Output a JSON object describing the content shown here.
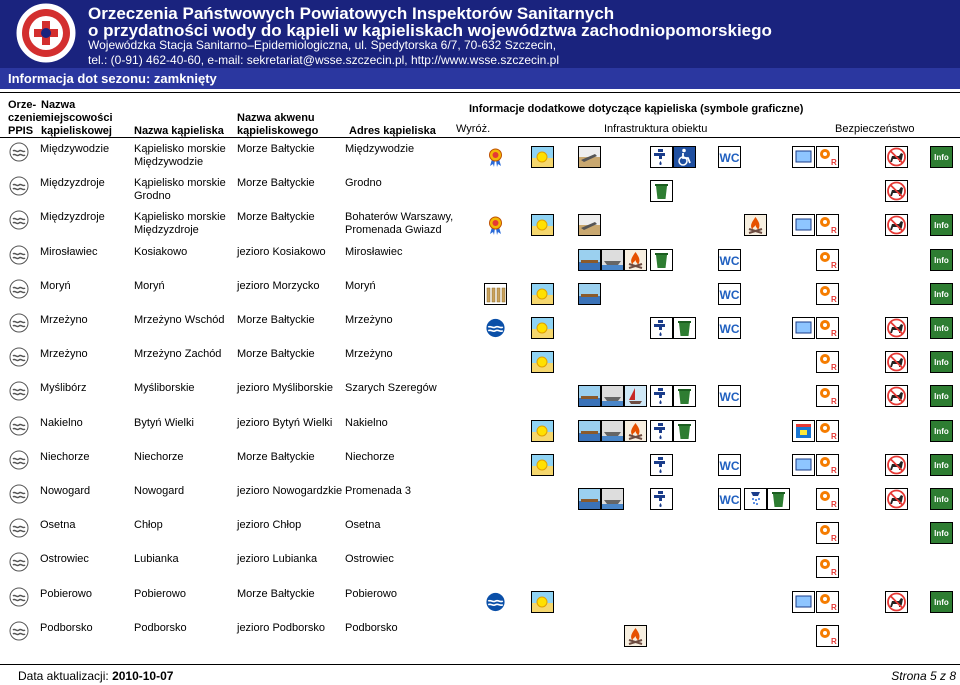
{
  "header": {
    "title_line1": "Orzeczenia Państwowych Powiatowych Inspektorów Sanitarnych",
    "title_line2": "o przydatności wody do kąpieli w kąpieliskach województwa zachodniopomorskiego",
    "address_line1": "Wojewódzka Stacja Sanitarno–Epidemiologiczna, ul. Spedytorska 6/7, 70-632 Szczecin,",
    "address_line2": "tel.: (0-91) 462-40-60, e-mail: sekretariat@wsse.szczecin.pl, http://www.wsse.szczecin.pl",
    "logo_icon": "pis-emblem-icon"
  },
  "season_label": "Informacja dot sezonu:   zamknięty",
  "columns": {
    "orzeczenie_l1": "Orze-",
    "orzeczenie_l2": "czenie",
    "orzeczenie_l3": "PPIS",
    "miejscowosc_l1": "Nazwa",
    "miejscowosc_l2": "miejscowości",
    "miejscowosc_l3": "kąpieliskowej",
    "kapielisko": "Nazwa kąpieliska",
    "akwen_l1": "Nazwa akwenu",
    "akwen_l2": "kąpieliskowego",
    "adres": "Adres kąpieliska",
    "info": "Informacje dodatkowe dotyczące kąpieliska (symbole graficzne)",
    "wyroz": "Wyróż.",
    "infrastruktura": "Infrastruktura obiektu",
    "bezpieczenstwo": "Bezpieczeństwo"
  },
  "colors": {
    "header_bg": "#1a237e",
    "season_bg": "#2b37a0",
    "water_icon": "#0a4fa8",
    "wc_icon": "#2060c0"
  },
  "rows": [
    {
      "miejscowosc": "Międzywodzie",
      "kapielisko_l1": "Kąpielisko morskie",
      "kapielisko_l2": "Międzywodzie",
      "akwen": "Morze Bałtyckie",
      "adres_l1": "Międzywodzie",
      "adres_l2": "",
      "icons": [
        "medal",
        "beach",
        "sunbed",
        "",
        "",
        "tap",
        "wheelchair",
        "wc",
        "",
        "",
        "flag",
        "lifeguard",
        "nodog",
        "info"
      ]
    },
    {
      "miejscowosc": "Międzyzdroje",
      "kapielisko_l1": "Kąpielisko morskie",
      "kapielisko_l2": "Grodno",
      "akwen": "Morze Bałtyckie",
      "adres_l1": "Grodno",
      "adres_l2": "",
      "icons": [
        "",
        "",
        "",
        "",
        "",
        "bin",
        "",
        "",
        "",
        "",
        "",
        "",
        "nodog",
        ""
      ]
    },
    {
      "miejscowosc": "Międzyzdroje",
      "kapielisko_l1": "Kąpielisko morskie",
      "kapielisko_l2": "Międzyzdroje",
      "akwen": "Morze Bałtyckie",
      "adres_l1": "Bohaterów Warszawy,",
      "adres_l2": "Promenada Gwiazd",
      "icons": [
        "medal",
        "beach",
        "sunbed",
        "",
        "",
        "",
        "",
        "",
        "fire",
        "",
        "flag",
        "lifeguard",
        "nodog",
        "info"
      ]
    },
    {
      "miejscowosc": "Mirosławiec",
      "kapielisko_l1": "Kosiakowo",
      "kapielisko_l2": "",
      "akwen": "jezioro Kosiakowo",
      "adres_l1": "Mirosławiec",
      "adres_l2": "",
      "icons": [
        "",
        "",
        "pier",
        "boat",
        "fire",
        "bin",
        "",
        "wc",
        "",
        "",
        "",
        "lifeguard",
        "",
        "info"
      ]
    },
    {
      "miejscowosc": "Moryń",
      "kapielisko_l1": "Moryń",
      "kapielisko_l2": "",
      "akwen": "jezioro Morzycko",
      "adres_l1": "Moryń",
      "adres_l2": "",
      "icons": [
        "fence",
        "beach",
        "pier",
        "",
        "",
        "",
        "",
        "wc",
        "",
        "",
        "",
        "lifeguard",
        "",
        "info"
      ]
    },
    {
      "miejscowosc": "Mrzeżyno",
      "kapielisko_l1": "Mrzeżyno Wschód",
      "kapielisko_l2": "",
      "akwen": "Morze Bałtyckie",
      "adres_l1": "Mrzeżyno",
      "adres_l2": "",
      "icons": [
        "water",
        "beach",
        "",
        "",
        "",
        "tap",
        "bin",
        "wc",
        "",
        "",
        "flag",
        "lifeguard",
        "nodog",
        "info"
      ]
    },
    {
      "miejscowosc": "Mrzeżyno",
      "kapielisko_l1": "Mrzeżyno Zachód",
      "kapielisko_l2": "",
      "akwen": "Morze Bałtyckie",
      "adres_l1": "Mrzeżyno",
      "adres_l2": "",
      "icons": [
        "",
        "beach",
        "",
        "",
        "",
        "",
        "",
        "",
        "",
        "",
        "",
        "lifeguard",
        "nodog",
        "info"
      ]
    },
    {
      "miejscowosc": "Myślibórz",
      "kapielisko_l1": "Myśliborskie",
      "kapielisko_l2": "",
      "akwen": "jezioro Myśliborskie",
      "adres_l1": "Szarych Szeregów",
      "adres_l2": "",
      "icons": [
        "",
        "",
        "pier",
        "boat",
        "sail",
        "tap",
        "bin",
        "wc",
        "",
        "",
        "",
        "lifeguard",
        "nodog",
        "info"
      ]
    },
    {
      "miejscowosc": "Nakielno",
      "kapielisko_l1": "Bytyń Wielki",
      "kapielisko_l2": "",
      "akwen": "jezioro Bytyń Wielki",
      "adres_l1": "Nakielno",
      "adres_l2": "",
      "icons": [
        "",
        "beach",
        "pier",
        "boat",
        "fire",
        "tap",
        "bin",
        "",
        "",
        "",
        "kiosk",
        "lifeguard",
        "",
        "info"
      ]
    },
    {
      "miejscowosc": "Niechorze",
      "kapielisko_l1": "Niechorze",
      "kapielisko_l2": "",
      "akwen": "Morze Bałtyckie",
      "adres_l1": "Niechorze",
      "adres_l2": "",
      "icons": [
        "",
        "beach",
        "",
        "",
        "",
        "tap",
        "",
        "wc",
        "",
        "",
        "flag",
        "lifeguard",
        "nodog",
        "info"
      ]
    },
    {
      "miejscowosc": "Nowogard",
      "kapielisko_l1": "Nowogard",
      "kapielisko_l2": "",
      "akwen": "jezioro Nowogardzkie",
      "adres_l1": "Promenada 3",
      "adres_l2": "",
      "icons": [
        "",
        "",
        "pier",
        "boat",
        "",
        "tap",
        "",
        "wc",
        "shower",
        "bin",
        "",
        "lifeguard",
        "nodog",
        "info"
      ]
    },
    {
      "miejscowosc": "Osetna",
      "kapielisko_l1": "Chłop",
      "kapielisko_l2": "",
      "akwen": "jezioro Chłop",
      "adres_l1": "Osetna",
      "adres_l2": "",
      "icons": [
        "",
        "",
        "",
        "",
        "",
        "",
        "",
        "",
        "",
        "",
        "",
        "lifeguard",
        "",
        "info"
      ]
    },
    {
      "miejscowosc": "Ostrowiec",
      "kapielisko_l1": "Lubianka",
      "kapielisko_l2": "",
      "akwen": "jezioro Lubianka",
      "adres_l1": "Ostrowiec",
      "adres_l2": "",
      "icons": [
        "",
        "",
        "",
        "",
        "",
        "",
        "",
        "",
        "",
        "",
        "",
        "lifeguard",
        "",
        ""
      ]
    },
    {
      "miejscowosc": "Pobierowo",
      "kapielisko_l1": "Pobierowo",
      "kapielisko_l2": "",
      "akwen": "Morze Bałtyckie",
      "adres_l1": "Pobierowo",
      "adres_l2": "",
      "icons": [
        "water",
        "beach",
        "",
        "",
        "",
        "",
        "",
        "",
        "",
        "",
        "flag",
        "lifeguard",
        "nodog",
        "info"
      ]
    },
    {
      "miejscowosc": "Podborsko",
      "kapielisko_l1": "Podborsko",
      "kapielisko_l2": "",
      "akwen": "jezioro Podborsko",
      "adres_l1": "Podborsko",
      "adres_l2": "",
      "icons": [
        "",
        "",
        "",
        "",
        "fire",
        "",
        "",
        "",
        "",
        "",
        "",
        "lifeguard",
        "",
        ""
      ]
    }
  ],
  "footer": {
    "label": "Data aktualizacji:",
    "date": "2010-10-07",
    "page": "Strona 5 z 8"
  }
}
